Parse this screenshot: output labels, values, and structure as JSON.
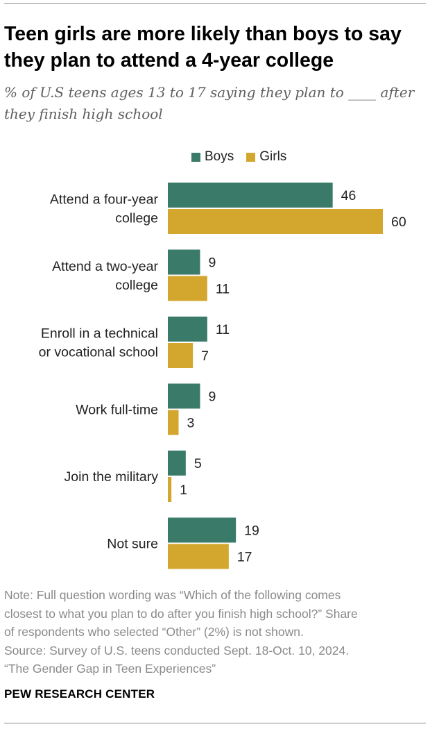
{
  "header": {
    "title": "Teen girls are more likely than boys to say they plan to attend a 4-year college",
    "subtitle": "% of U.S teens ages 13 to 17 saying they plan to ____ after they finish high school"
  },
  "legend": {
    "items": [
      {
        "label": "Boys",
        "color": "#3a7a68"
      },
      {
        "label": "Girls",
        "color": "#d3a72e"
      }
    ]
  },
  "chart_data": {
    "type": "bar",
    "orientation": "horizontal",
    "categories": [
      [
        "Attend a four-year",
        "college"
      ],
      [
        "Attend a two-year",
        "college"
      ],
      [
        "Enroll in a technical",
        "or vocational school"
      ],
      [
        "Work full-time"
      ],
      [
        "Join the military"
      ],
      [
        "Not sure"
      ]
    ],
    "series": [
      {
        "name": "Boys",
        "color": "#3a7a68",
        "values": [
          46,
          9,
          11,
          9,
          5,
          19
        ]
      },
      {
        "name": "Girls",
        "color": "#d3a72e",
        "values": [
          60,
          11,
          7,
          3,
          1,
          17
        ]
      }
    ],
    "xlim": [
      0,
      60
    ],
    "grid": false,
    "legend_position": "top"
  },
  "footer": {
    "notes": [
      "Note: Full question wording was “Which of the following comes",
      "closest to what you plan to do after you finish high school?” Share",
      "of respondents who selected “Other” (2%) is not shown.",
      "Source: Survey of U.S. teens conducted Sept. 18-Oct. 10, 2024.",
      "“The Gender Gap in Teen Experiences”"
    ],
    "brand": "PEW RESEARCH CENTER"
  }
}
